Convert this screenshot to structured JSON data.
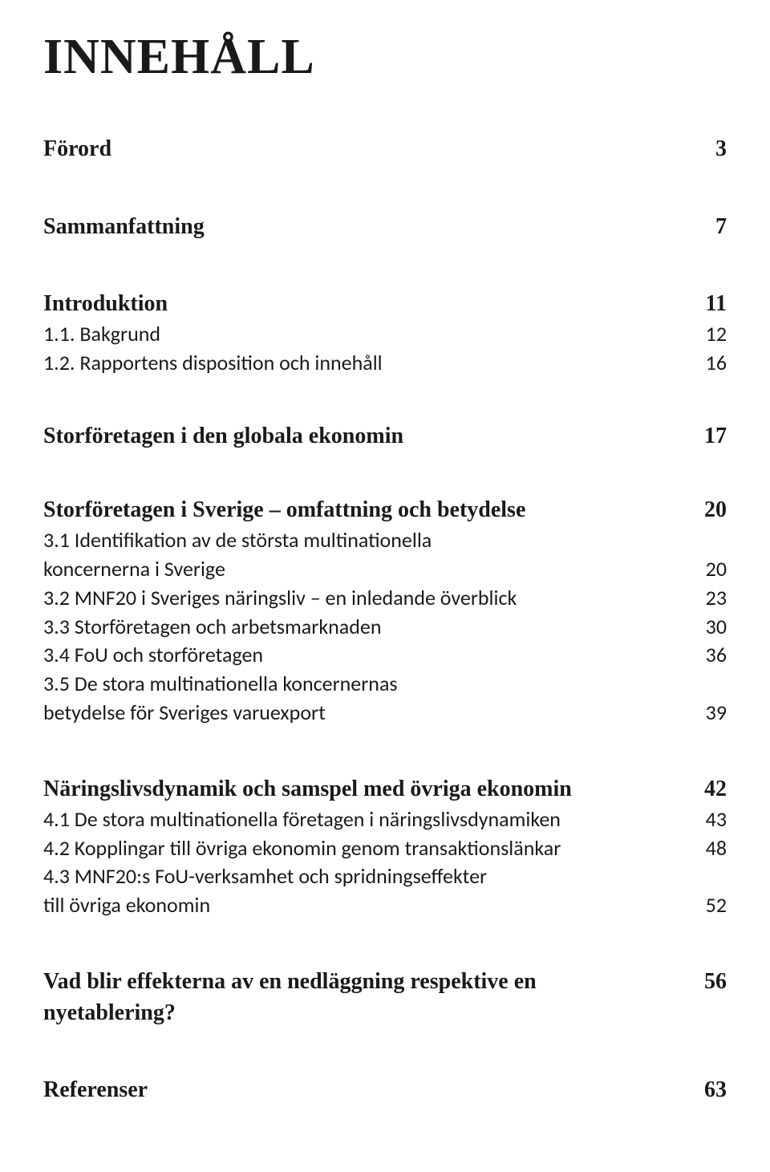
{
  "title": "INNEHÅLL",
  "toc": {
    "forord": {
      "label": "Förord",
      "page": "3"
    },
    "samman": {
      "label": "Sammanfattning",
      "page": "7"
    },
    "intro": {
      "label": "Introduktion",
      "page": "11"
    },
    "s1_1": {
      "label": "1.1. Bakgrund",
      "page": "12"
    },
    "s1_2": {
      "label": "1.2. Rapportens disposition och innehåll",
      "page": "16"
    },
    "global": {
      "label": "Storföretagen i den globala ekonomin",
      "page": "17"
    },
    "sverige": {
      "label": "Storföretagen i Sverige – omfattning och betydelse",
      "page": "20"
    },
    "s3_1a": {
      "label": "3.1 Identifikation av de största multinationella",
      "page": ""
    },
    "s3_1b": {
      "label": "koncernerna i Sverige",
      "page": "20"
    },
    "s3_2": {
      "label": "3.2 MNF20 i Sveriges näringsliv – en inledande överblick",
      "page": "23"
    },
    "s3_3": {
      "label": "3.3 Storföretagen och arbetsmarknaden",
      "page": "30"
    },
    "s3_4": {
      "label": "3.4 FoU och storföretagen",
      "page": "36"
    },
    "s3_5a": {
      "label": "3.5 De stora multinationella koncernernas",
      "page": ""
    },
    "s3_5b": {
      "label": "betydelse för Sveriges varuexport",
      "page": "39"
    },
    "narings": {
      "label": "Näringslivsdynamik och samspel med övriga ekonomin",
      "page": "42"
    },
    "s4_1": {
      "label": "4.1 De stora multinationella företagen i näringslivsdynamiken",
      "page": "43"
    },
    "s4_2": {
      "label": "4.2 Kopplingar till övriga ekonomin genom transaktionslänkar",
      "page": "48"
    },
    "s4_3a": {
      "label": "4.3 MNF20:s FoU-verksamhet och spridningseffekter",
      "page": ""
    },
    "s4_3b": {
      "label": "till övriga ekonomin",
      "page": "52"
    },
    "vad": {
      "label": "Vad blir effekterna av en nedläggning respektive en nyetablering?",
      "page": "56"
    },
    "ref": {
      "label": "Referenser",
      "page": "63"
    }
  }
}
